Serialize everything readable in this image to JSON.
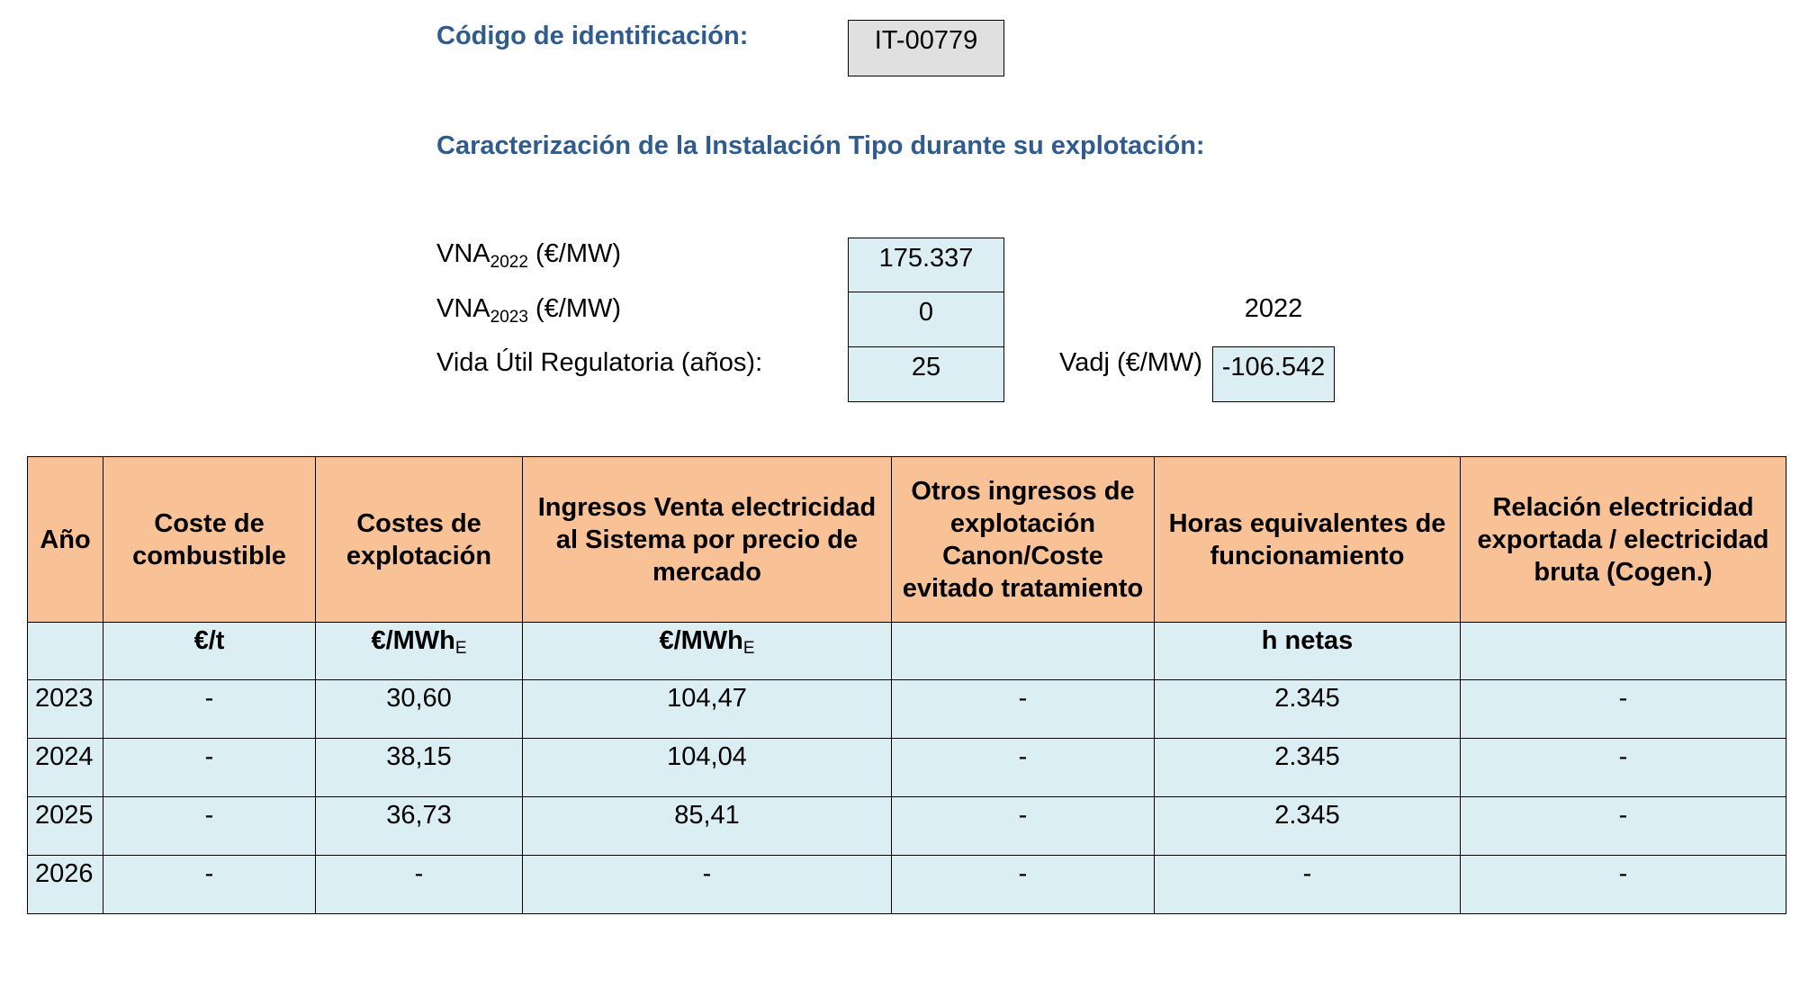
{
  "header": {
    "id_label": "Código de identificación:",
    "id_value": "IT-00779",
    "section_title": "Caracterización de la Instalación Tipo durante su explotación:"
  },
  "params": {
    "vna2022_label_main": "VNA",
    "vna2022_label_sub": "2022",
    "vna2022_label_unit": " (€/MW)",
    "vna2022_value": "175.337",
    "vna2023_label_main": "VNA",
    "vna2023_label_sub": "2023",
    "vna2023_label_unit": " (€/MW)",
    "vna2023_value": "0",
    "vida_label": "Vida Útil Regulatoria (años):",
    "vida_value": "25",
    "year_value": "2022",
    "vadj_label": "Vadj (€/MW)",
    "vadj_value": "-106.542"
  },
  "table": {
    "headers": [
      "Año",
      "Coste de combustible",
      "Costes de explotación",
      "Ingresos Venta electricidad al Sistema por precio de mercado",
      "Otros ingresos de explotación Canon/Coste evitado tratamiento",
      "Horas equivalentes de funcionamiento",
      "Relación electricidad exportada / electricidad bruta (Cogen.)"
    ],
    "units": [
      {
        "main": "",
        "sub": ""
      },
      {
        "main": "€/t",
        "sub": ""
      },
      {
        "main": "€/MWh",
        "sub": "E"
      },
      {
        "main": "€/MWh",
        "sub": "E"
      },
      {
        "main": "",
        "sub": ""
      },
      {
        "main": "h netas",
        "sub": ""
      },
      {
        "main": "",
        "sub": ""
      }
    ],
    "rows": [
      [
        "2023",
        "-",
        "30,60",
        "104,47",
        "-",
        "2.345",
        "-"
      ],
      [
        "2024",
        "-",
        "38,15",
        "104,04",
        "-",
        "2.345",
        "-"
      ],
      [
        "2025",
        "-",
        "36,73",
        "85,41",
        "-",
        "2.345",
        "-"
      ],
      [
        "2026",
        "-",
        "-",
        "-",
        "-",
        "-",
        "-"
      ]
    ]
  },
  "colors": {
    "heading": "#2f5b8f",
    "header_fill": "#f9c196",
    "cell_fill": "#dbeef4",
    "id_box_fill": "#e0e0e0"
  }
}
